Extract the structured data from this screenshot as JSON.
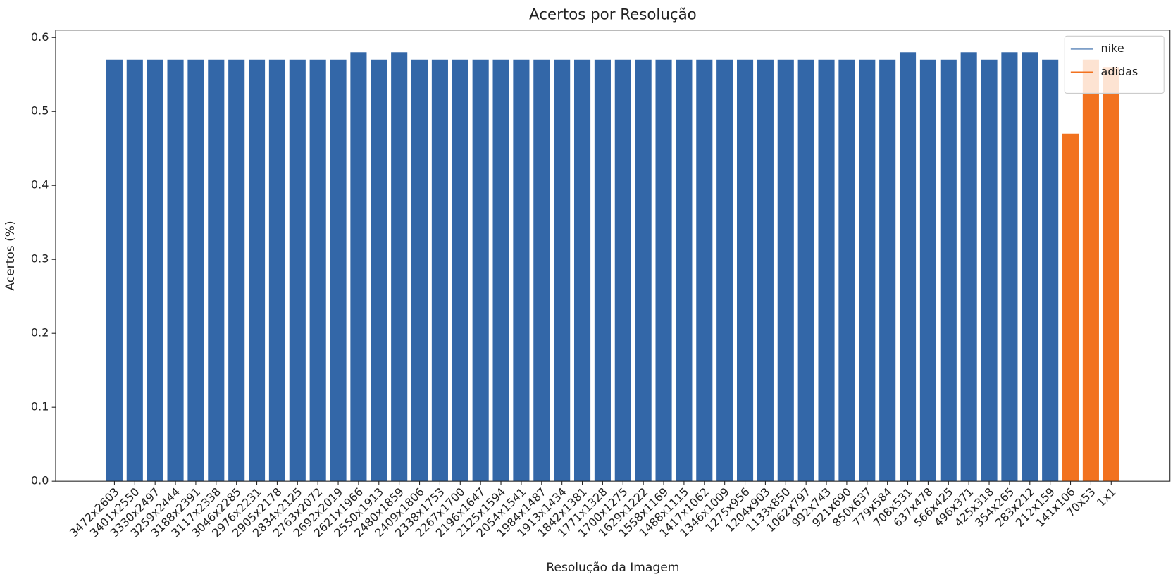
{
  "chart_data": {
    "type": "bar",
    "title": "Acertos por Resolução",
    "x_label": "Resolução da Imagem",
    "y_label": "Acertos (%)",
    "categories": [
      "3472x2603",
      "3401x2550",
      "3330x2497",
      "3259x2444",
      "3188x2391",
      "3117x2338",
      "3046x2285",
      "2976x2231",
      "2905x2178",
      "2834x2125",
      "2763x2072",
      "2692x2019",
      "2621x1966",
      "2550x1913",
      "2480x1859",
      "2409x1806",
      "2338x1753",
      "2267x1700",
      "2196x1647",
      "2125x1594",
      "2054x1541",
      "1984x1487",
      "1913x1434",
      "1842x1381",
      "1771x1328",
      "1700x1275",
      "1629x1222",
      "1558x1169",
      "1488x1115",
      "1417x1062",
      "1346x1009",
      "1275x956",
      "1204x903",
      "1133x850",
      "1062x797",
      "992x743",
      "921x690",
      "850x637",
      "779x584",
      "708x531",
      "637x478",
      "566x425",
      "496x371",
      "425x318",
      "354x265",
      "283x212",
      "212x159",
      "141x106",
      "70x53",
      "1x1"
    ],
    "series": [
      {
        "name": "nike",
        "color": "#3367a8",
        "values": [
          0.57,
          0.57,
          0.57,
          0.57,
          0.57,
          0.57,
          0.57,
          0.57,
          0.57,
          0.57,
          0.57,
          0.57,
          0.58,
          0.57,
          0.58,
          0.57,
          0.57,
          0.57,
          0.57,
          0.57,
          0.57,
          0.57,
          0.57,
          0.57,
          0.57,
          0.57,
          0.57,
          0.57,
          0.57,
          0.57,
          0.57,
          0.57,
          0.57,
          0.57,
          0.57,
          0.57,
          0.57,
          0.57,
          0.57,
          0.58,
          0.57,
          0.57,
          0.58,
          0.57,
          0.58,
          0.58,
          0.57,
          null,
          null,
          null
        ]
      },
      {
        "name": "adidas",
        "color": "#f2721f",
        "values": [
          null,
          null,
          null,
          null,
          null,
          null,
          null,
          null,
          null,
          null,
          null,
          null,
          null,
          null,
          null,
          null,
          null,
          null,
          null,
          null,
          null,
          null,
          null,
          null,
          null,
          null,
          null,
          null,
          null,
          null,
          null,
          null,
          null,
          null,
          null,
          null,
          null,
          null,
          null,
          null,
          null,
          null,
          null,
          null,
          null,
          null,
          null,
          0.47,
          0.57,
          0.56
        ]
      }
    ],
    "ylim": [
      0,
      0.61
    ],
    "yticks": [
      {
        "value": 0,
        "label": "0.0"
      },
      0.1,
      0.2,
      0.3,
      0.4,
      0.5,
      0.6
    ],
    "legend": "upper right"
  }
}
